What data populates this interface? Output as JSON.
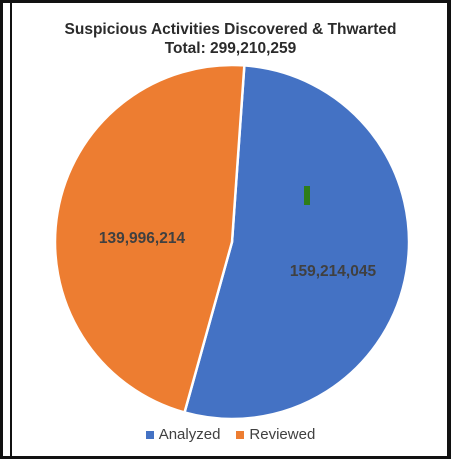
{
  "chart_data": {
    "type": "pie",
    "title": "Suspicious Activities Discovered & Thwarted",
    "subtitle": "Total: 299,210,259",
    "slices": [
      {
        "name": "Analyzed",
        "value": 159214045,
        "label": "159,214,045",
        "color": "#4472C4"
      },
      {
        "name": "Reviewed",
        "value": 139996214,
        "label": "139,996,214",
        "color": "#ED7D31"
      }
    ],
    "legend_position": "bottom"
  }
}
